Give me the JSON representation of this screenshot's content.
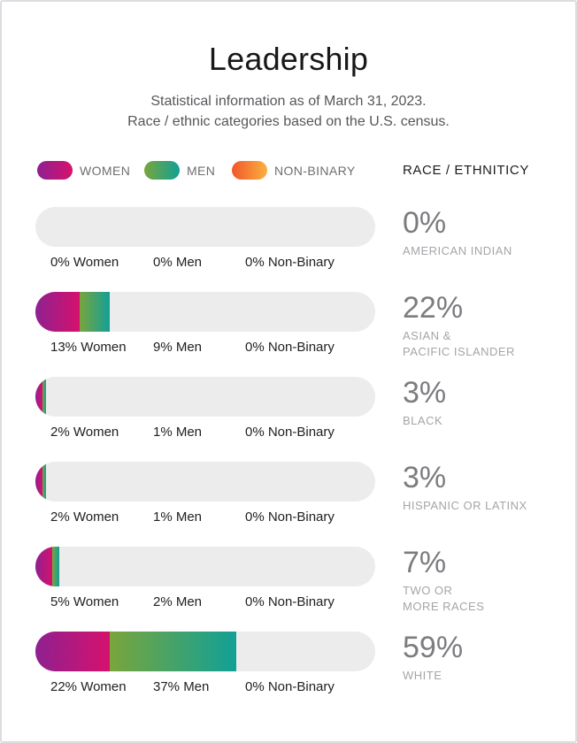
{
  "header": {
    "title": "Leadership",
    "subtitle_line1": "Statistical information as of March 31, 2023.",
    "subtitle_line2": "Race / ethnic categories based on the U.S. census."
  },
  "legend": {
    "items": [
      {
        "key": "women",
        "label": "WOMEN",
        "gradient_start": "#8e2190",
        "gradient_end": "#d6116d"
      },
      {
        "key": "men",
        "label": "MEN",
        "gradient_start": "#79a53c",
        "gradient_end": "#12a096"
      },
      {
        "key": "non-binary",
        "label": "NON-BINARY",
        "gradient_start": "#f1582b",
        "gradient_end": "#fbb040"
      }
    ],
    "race_header": "RACE / ETHNITICY"
  },
  "colors": {
    "track": "#ececed",
    "card_border": "#dcdde0",
    "percent_text": "#7b7c7f",
    "race_text": "#a3a5a8"
  },
  "rows": [
    {
      "women_pct": 0,
      "men_pct": 0,
      "nonbinary_pct": 0,
      "women_label": "0% Women",
      "men_label": "0% Men",
      "nonbinary_label": "0% Non-Binary",
      "total_label": "0%",
      "race_label": "AMERICAN INDIAN"
    },
    {
      "women_pct": 13,
      "men_pct": 9,
      "nonbinary_pct": 0,
      "women_label": "13% Women",
      "men_label": "9% Men",
      "nonbinary_label": "0% Non-Binary",
      "total_label": "22%",
      "race_label": "ASIAN &\nPACIFIC ISLANDER"
    },
    {
      "women_pct": 2,
      "men_pct": 1,
      "nonbinary_pct": 0,
      "women_label": "2% Women",
      "men_label": "1% Men",
      "nonbinary_label": "0% Non-Binary",
      "total_label": "3%",
      "race_label": "BLACK"
    },
    {
      "women_pct": 2,
      "men_pct": 1,
      "nonbinary_pct": 0,
      "women_label": "2% Women",
      "men_label": "1% Men",
      "nonbinary_label": "0% Non-Binary",
      "total_label": "3%",
      "race_label": "HISPANIC OR LATINX"
    },
    {
      "women_pct": 5,
      "men_pct": 2,
      "nonbinary_pct": 0,
      "women_label": "5% Women",
      "men_label": "2% Men",
      "nonbinary_label": "0% Non-Binary",
      "total_label": "7%",
      "race_label": "TWO OR\nMORE RACES"
    },
    {
      "women_pct": 22,
      "men_pct": 37,
      "nonbinary_pct": 0,
      "women_label": "22% Women",
      "men_label": "37% Men",
      "nonbinary_label": "0% Non-Binary",
      "total_label": "59%",
      "race_label": "WHITE"
    }
  ],
  "chart_data": {
    "type": "bar",
    "stacked": true,
    "orientation": "horizontal",
    "unit": "%",
    "title": "Leadership",
    "subtitle": "Statistical information as of March 31, 2023. Race / ethnic categories based on the U.S. census.",
    "categories": [
      "American Indian",
      "Asian & Pacific Islander",
      "Black",
      "Hispanic or Latinx",
      "Two or More Races",
      "White"
    ],
    "series": [
      {
        "name": "Women",
        "values": [
          0,
          13,
          2,
          2,
          5,
          22
        ]
      },
      {
        "name": "Men",
        "values": [
          0,
          9,
          1,
          1,
          2,
          37
        ]
      },
      {
        "name": "Non-Binary",
        "values": [
          0,
          0,
          0,
          0,
          0,
          0
        ]
      }
    ],
    "totals": [
      0,
      22,
      3,
      3,
      7,
      59
    ],
    "xlim": [
      0,
      100
    ],
    "legend_position": "top",
    "grid": false
  }
}
